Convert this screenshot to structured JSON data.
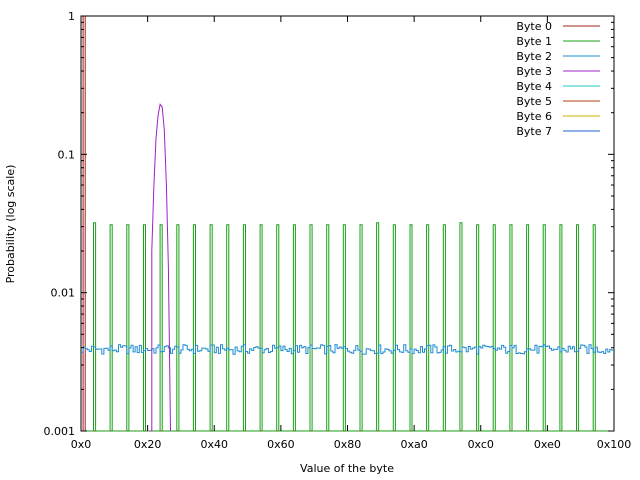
{
  "chart_data": {
    "type": "line",
    "xlabel": "Value of the byte",
    "ylabel": "Probability (log scale)",
    "xlim": [
      0,
      256
    ],
    "ylim": [
      0.001,
      1
    ],
    "y_scale": "log",
    "grid": false,
    "legend_position": "top-right",
    "x_ticks": [
      {
        "value": 0,
        "label": "0x0"
      },
      {
        "value": 32,
        "label": "0x20"
      },
      {
        "value": 64,
        "label": "0x40"
      },
      {
        "value": 96,
        "label": "0x60"
      },
      {
        "value": 128,
        "label": "0x80"
      },
      {
        "value": 160,
        "label": "0xa0"
      },
      {
        "value": 192,
        "label": "0xc0"
      },
      {
        "value": 224,
        "label": "0xe0"
      },
      {
        "value": 256,
        "label": "0x100"
      }
    ],
    "y_ticks": [
      {
        "value": 0.001,
        "label": "0.001"
      },
      {
        "value": 0.01,
        "label": "0.01"
      },
      {
        "value": 0.1,
        "label": "0.1"
      },
      {
        "value": 1,
        "label": "1"
      }
    ],
    "series": [
      {
        "name": "Byte 0",
        "color": "#a0201c",
        "points": [
          [
            0,
            0.001
          ],
          [
            1,
            0.001
          ],
          [
            1,
            1
          ],
          [
            2,
            1
          ],
          [
            2,
            0.001
          ],
          [
            256,
            0.001
          ]
        ]
      },
      {
        "name": "Byte 1",
        "color": "#1aa01a",
        "spikes": [
          6,
          14,
          22,
          30,
          38,
          46,
          54,
          62,
          70,
          78,
          86,
          94,
          102,
          110,
          118,
          126,
          134,
          142,
          150,
          158,
          166,
          174,
          182,
          190,
          198,
          206,
          214,
          222,
          230,
          238,
          246
        ],
        "values": [
          0.032,
          0.031,
          0.031,
          0.031,
          0.031,
          0.031,
          0.031,
          0.031,
          0.031,
          0.031,
          0.031,
          0.031,
          0.031,
          0.031,
          0.031,
          0.031,
          0.031,
          0.032,
          0.031,
          0.031,
          0.031,
          0.031,
          0.032,
          0.031,
          0.031,
          0.031,
          0.031,
          0.031,
          0.031,
          0.031,
          0.031
        ],
        "width": 1
      },
      {
        "name": "Byte 2",
        "color": "#1e8ccf",
        "mean": 0.0039
      },
      {
        "name": "Byte 3",
        "color": "#a020c8",
        "points": [
          [
            33,
            0.001
          ],
          [
            34,
            0.001
          ],
          [
            34,
            0.02
          ],
          [
            35,
            0.06
          ],
          [
            36,
            0.13
          ],
          [
            37,
            0.19
          ],
          [
            38,
            0.23
          ],
          [
            39,
            0.22
          ],
          [
            40,
            0.15
          ],
          [
            41,
            0.06
          ],
          [
            42,
            0.015
          ],
          [
            43,
            0.001
          ]
        ]
      },
      {
        "name": "Byte 4",
        "color": "#20c8c8",
        "points": []
      },
      {
        "name": "Byte 5",
        "color": "#b04010",
        "points": []
      },
      {
        "name": "Byte 6",
        "color": "#c8b400",
        "points": []
      },
      {
        "name": "Byte 7",
        "color": "#2060d0",
        "points": []
      }
    ]
  }
}
